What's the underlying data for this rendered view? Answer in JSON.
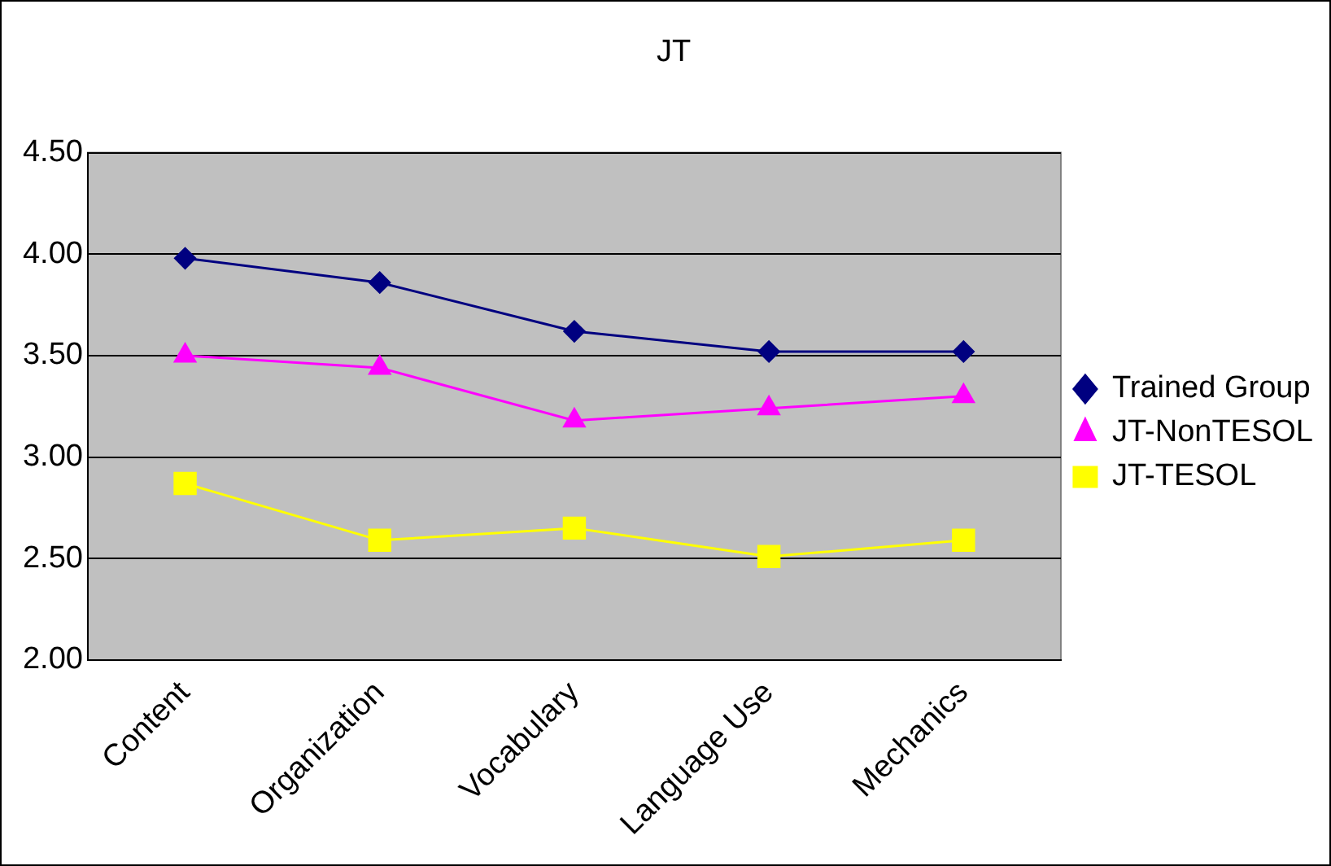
{
  "chart_data": {
    "type": "line",
    "title": "JT",
    "categories": [
      "Content",
      "Organization",
      "Vocabulary",
      "Language Use",
      "Mechanics"
    ],
    "series": [
      {
        "name": "Trained Group",
        "color": "#000080",
        "marker": "diamond",
        "values": [
          3.98,
          3.86,
          3.62,
          3.52,
          3.52
        ]
      },
      {
        "name": "JT-NonTESOL",
        "color": "#ff00ff",
        "marker": "triangle",
        "values": [
          3.5,
          3.44,
          3.18,
          3.24,
          3.3
        ]
      },
      {
        "name": "JT-TESOL",
        "color": "#ffff00",
        "marker": "square",
        "values": [
          2.87,
          2.59,
          2.65,
          2.51,
          2.59
        ]
      }
    ],
    "ylim": [
      2.0,
      4.5
    ],
    "yticks": [
      {
        "value": 2,
        "label": "2.00"
      },
      {
        "value": 2.5,
        "label": "2.50"
      },
      {
        "value": 3,
        "label": "3.00"
      },
      {
        "value": 3.5,
        "label": "3.50"
      },
      {
        "value": 4,
        "label": "4.00"
      },
      {
        "value": 4.5,
        "label": "4.50"
      }
    ],
    "grid": "y",
    "legend": "right",
    "line_style": "solid"
  }
}
